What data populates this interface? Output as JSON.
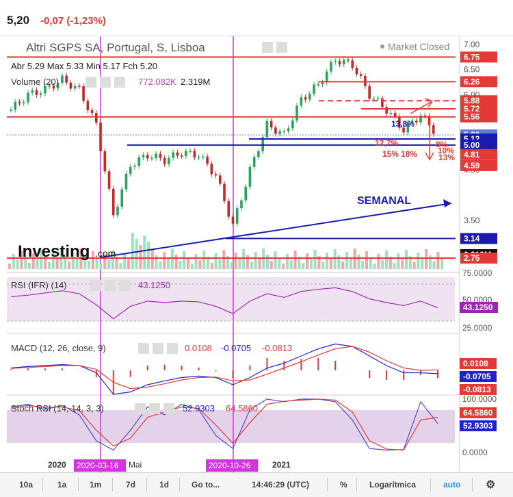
{
  "header": {
    "price": "5,20",
    "change": "-0,07 (-1,23%)"
  },
  "legend": {
    "title": "Altri SGPS SA, Portugal, S, Lisboa",
    "status": "Market Closed",
    "ohlc": {
      "open_label": "Abr",
      "open": "5.29",
      "high_label": "Max",
      "high": "5.33",
      "low_label": "Min",
      "low": "5.17",
      "close_label": "Fch",
      "close": "5.20"
    },
    "volume_label": "Volume (20)",
    "volume_ma": "772.082K",
    "volume_val": "2.319M"
  },
  "annotations": {
    "semanal": "SEMANAL",
    "pct_138": "13,8%",
    "pct_127": "12,7%",
    "pct_8": "8%",
    "pct_10": "10%",
    "pct_13": "13%",
    "pct_15": "15%",
    "pct_18": "18%",
    "logo": "Investing",
    "logo_suffix": ".com"
  },
  "price_axis_labels": [
    "7.00",
    "6.50",
    "6.00",
    "5.50",
    "5.00",
    "4.50",
    "3.50",
    "2.75"
  ],
  "levels": [
    {
      "value": "6.75",
      "color": "#e53935"
    },
    {
      "value": "6.26",
      "color": "#e53935"
    },
    {
      "value": "5.88",
      "color": "#e53935"
    },
    {
      "value": "5.72",
      "color": "#e53935"
    },
    {
      "value": "5.56",
      "color": "#e53935"
    },
    {
      "value": "5.20",
      "color": "#5b7bd5"
    },
    {
      "value": "5.12",
      "color": "#1a1aad"
    },
    {
      "value": "5.00",
      "color": "#1a1aad"
    },
    {
      "value": "4.81",
      "color": "#e53935"
    },
    {
      "value": "4.59",
      "color": "#e53935"
    },
    {
      "value": "3.14",
      "color": "#1a1aad"
    },
    {
      "value": "2.319M",
      "color": "#111111"
    },
    {
      "value": "2.75",
      "color": "#e53935"
    }
  ],
  "rsi": {
    "label": "RSI (IFR) (14)",
    "value": "43.1250",
    "axis": [
      "75.0000",
      "50.0000",
      "25.0000"
    ]
  },
  "macd": {
    "label": "MACD (12, 26, close, 9)",
    "v1": "0.0108",
    "v2": "-0.0705",
    "v3": "-0.0813",
    "axis_labels": [
      "0.0108",
      "-0.0705",
      "-0.0813"
    ]
  },
  "stoch": {
    "label": "Stoch RSI (14, 14, 3, 3)",
    "v1": "52.9303",
    "v2": "64.5860",
    "axis": [
      "100.0000",
      "0.0000"
    ],
    "axis_labels": [
      "64.5860",
      "52.9303"
    ]
  },
  "x_axis": {
    "labels": [
      "2020",
      "Mai",
      "2021"
    ],
    "markers": [
      "2020-03-16",
      "2020-10-26"
    ]
  },
  "toolbar": {
    "ranges": [
      "10a",
      "1a",
      "1m",
      "7d",
      "1d"
    ],
    "goto": "Go to...",
    "time": "14:46:29 (UTC)",
    "percent": "%",
    "log": "Logarítmica",
    "auto": "auto"
  },
  "chart_data": {
    "type": "candlestick",
    "interval": "weekly",
    "title": "Altri SGPS SA, Portugal, S, Lisboa",
    "x": [
      "2019-09",
      "2019-10",
      "2019-11",
      "2019-12",
      "2020-01",
      "2020-02",
      "2020-03",
      "2020-04",
      "2020-05",
      "2020-06",
      "2020-07",
      "2020-08",
      "2020-09",
      "2020-10",
      "2020-11",
      "2020-12",
      "2021-01",
      "2021-02",
      "2021-03",
      "2021-04",
      "2021-05",
      "2021-06",
      "2021-07",
      "2021-08",
      "2021-09",
      "2021-10"
    ],
    "close": [
      5.7,
      6.0,
      6.1,
      6.3,
      6.1,
      5.4,
      3.6,
      4.6,
      4.8,
      4.7,
      4.85,
      4.8,
      4.4,
      3.4,
      4.5,
      5.4,
      5.2,
      5.9,
      6.2,
      6.7,
      6.6,
      6.0,
      5.7,
      5.3,
      5.6,
      5.2
    ],
    "ylim": [
      2.75,
      7.0
    ],
    "horizontal_levels": [
      6.75,
      6.26,
      5.88,
      5.72,
      5.56,
      5.2,
      5.12,
      5.0,
      4.81,
      4.59,
      3.14,
      2.75
    ],
    "rsi": [
      58,
      60,
      63,
      66,
      62,
      47,
      28,
      45,
      52,
      50,
      52,
      51,
      45,
      35,
      52,
      62,
      57,
      65,
      68,
      70,
      65,
      55,
      50,
      46,
      52,
      43
    ],
    "macd_line": [
      0.05,
      0.08,
      0.1,
      0.12,
      0.1,
      -0.05,
      -0.5,
      -0.45,
      -0.3,
      -0.22,
      -0.15,
      -0.12,
      -0.15,
      -0.3,
      -0.15,
      0.05,
      0.15,
      0.3,
      0.45,
      0.55,
      0.5,
      0.3,
      0.1,
      -0.05,
      -0.05,
      -0.07
    ],
    "signal_line": [
      0.04,
      0.06,
      0.08,
      0.1,
      0.1,
      0.02,
      -0.25,
      -0.38,
      -0.35,
      -0.28,
      -0.2,
      -0.15,
      -0.14,
      -0.22,
      -0.2,
      -0.08,
      0.05,
      0.18,
      0.32,
      0.45,
      0.5,
      0.38,
      0.2,
      0.05,
      0.0,
      0.01
    ],
    "stoch_k": [
      85,
      90,
      80,
      88,
      70,
      20,
      2,
      40,
      85,
      70,
      90,
      80,
      30,
      5,
      80,
      100,
      95,
      100,
      100,
      95,
      60,
      5,
      2,
      3,
      95,
      53
    ],
    "stoch_d": [
      82,
      88,
      84,
      85,
      78,
      40,
      10,
      25,
      65,
      75,
      85,
      82,
      50,
      15,
      55,
      90,
      96,
      98,
      100,
      98,
      75,
      20,
      4,
      2,
      60,
      65
    ]
  }
}
